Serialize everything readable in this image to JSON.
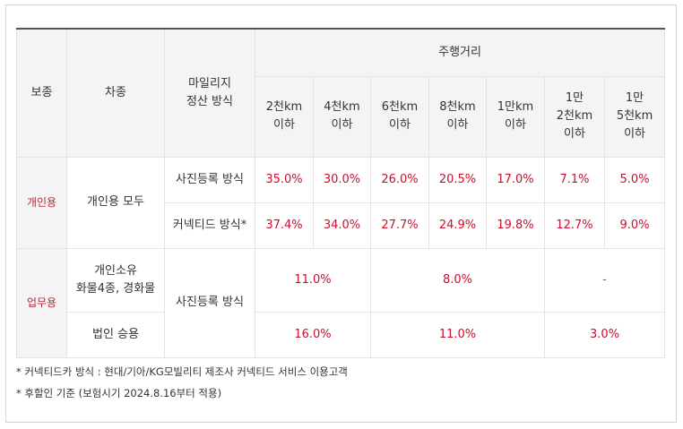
{
  "header": {
    "insurance_type": "보종",
    "vehicle_type": "차종",
    "mileage_method": [
      "마일리지",
      "정산 방식"
    ],
    "distance_group": "주행거리",
    "distance_cols": [
      [
        "2천km",
        "이하"
      ],
      [
        "4천km",
        "이하"
      ],
      [
        "6천km",
        "이하"
      ],
      [
        "8천km",
        "이하"
      ],
      [
        "1만km",
        "이하"
      ],
      [
        "1만",
        "2천km",
        "이하"
      ],
      [
        "1만",
        "5천km",
        "이하"
      ]
    ]
  },
  "personal": {
    "label": "개인용",
    "vehicle": "개인용 모두",
    "rows": [
      {
        "method": "사진등록 방식",
        "values": [
          "35.0%",
          "30.0%",
          "26.0%",
          "20.5%",
          "17.0%",
          "7.1%",
          "5.0%"
        ]
      },
      {
        "method": "커넥티드 방식*",
        "values": [
          "37.4%",
          "34.0%",
          "27.7%",
          "24.9%",
          "19.8%",
          "12.7%",
          "9.0%"
        ]
      }
    ]
  },
  "business": {
    "label": "업무용",
    "method": "사진등록 방식",
    "rows": [
      {
        "vehicle": [
          "개인소유",
          "화물4종, 경화물"
        ],
        "values": [
          "11.0%",
          "8.0%",
          "-"
        ]
      },
      {
        "vehicle": [
          "법인 승용"
        ],
        "values": [
          "16.0%",
          "11.0%",
          "3.0%"
        ]
      }
    ]
  },
  "notes": [
    "* 커넥티드카 방식 : 현대/기아/KG모빌리티 제조사 커넥티드 서비스 이용고객",
    "* 후할인 기준 (보험시기 2024.8.16부터 적용)"
  ]
}
